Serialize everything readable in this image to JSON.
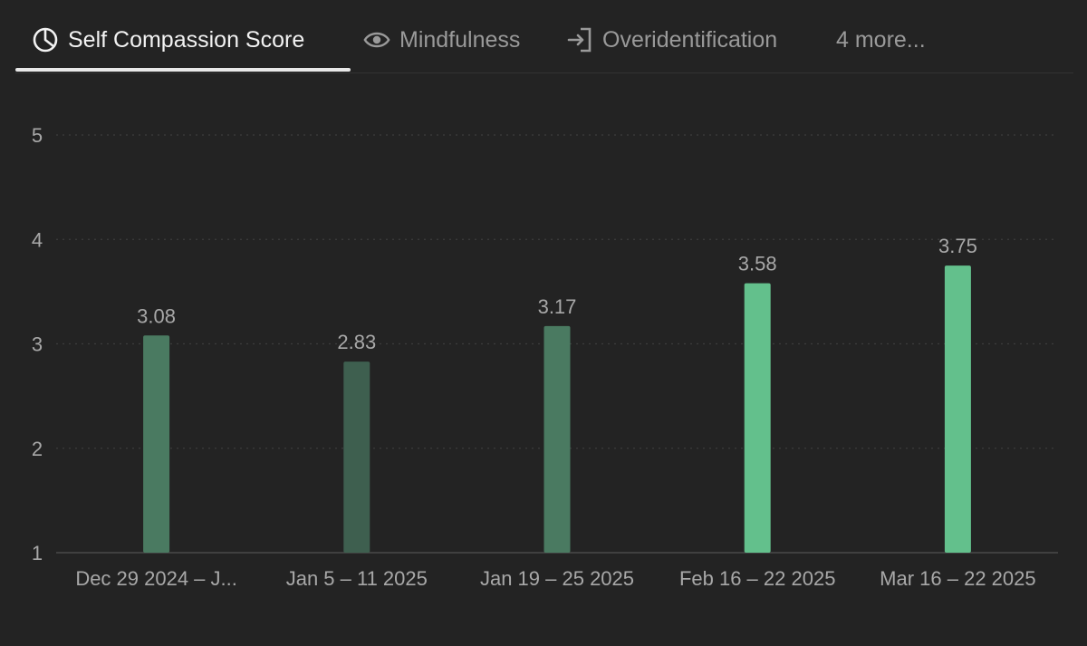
{
  "tabs": [
    {
      "label": "Self Compassion Score",
      "icon": "pie-chart-icon",
      "active": true
    },
    {
      "label": "Mindfulness",
      "icon": "eye-icon",
      "active": false
    },
    {
      "label": "Overidentification",
      "icon": "sign-in-icon",
      "active": false
    },
    {
      "label": "4 more...",
      "icon": "",
      "active": false
    }
  ],
  "colors": {
    "background": "#232323",
    "bar_dark": "#3e5f4f",
    "bar_mid": "#4a7a61",
    "bar_light": "#63c08c",
    "text": "#a8a8a8"
  },
  "chart_data": {
    "type": "bar",
    "categories": [
      "Dec 29 2024 – J...",
      "Jan 5 – 11 2025",
      "Jan 19 – 25 2025",
      "Feb 16 – 22 2025",
      "Mar 16 – 22 2025"
    ],
    "values": [
      3.08,
      2.83,
      3.17,
      3.58,
      3.75
    ],
    "value_labels": [
      "3.08",
      "2.83",
      "3.17",
      "3.58",
      "3.75"
    ],
    "bar_colors": [
      "#4a7a61",
      "#3e5f4f",
      "#4a7a61",
      "#63c08c",
      "#63c08c"
    ],
    "yticks": [
      "1",
      "2",
      "3",
      "4",
      "5"
    ],
    "ylim": [
      1,
      5
    ],
    "grid": "dotted-horizontal",
    "title": "",
    "xlabel": "",
    "ylabel": ""
  }
}
